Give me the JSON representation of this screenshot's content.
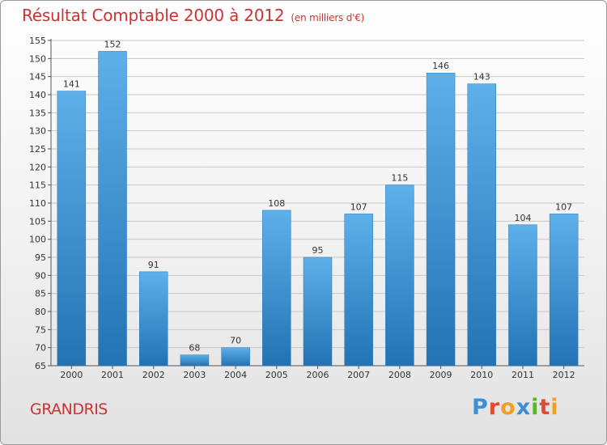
{
  "title": "Résultat Comptable 2000 à 2012",
  "subtitle": "(en milliers d'€)",
  "place": "GRANDRIS",
  "logo": {
    "text": "Proxiti",
    "letters": [
      {
        "ch": "P",
        "color": "#3a8fd8"
      },
      {
        "ch": "r",
        "color": "#e2492e"
      },
      {
        "ch": "o",
        "color": "#f0a020"
      },
      {
        "ch": "x",
        "color": "#3a8fd8"
      },
      {
        "ch": "i",
        "color": "#59b52e"
      },
      {
        "ch": "t",
        "color": "#e2492e"
      },
      {
        "ch": "i",
        "color": "#f0a020"
      }
    ]
  },
  "colors": {
    "title": "#cc3333",
    "bar_top": "#5eb0ea",
    "bar_bottom": "#2273b4",
    "grid": "#c8c8c8"
  },
  "chart_data": {
    "type": "bar",
    "title": "Résultat Comptable 2000 à 2012",
    "subtitle": "(en milliers d'€)",
    "xlabel": "",
    "ylabel": "",
    "categories": [
      "2000",
      "2001",
      "2002",
      "2003",
      "2004",
      "2005",
      "2006",
      "2007",
      "2008",
      "2009",
      "2010",
      "2011",
      "2012"
    ],
    "values": [
      141,
      152,
      91,
      68,
      70,
      108,
      95,
      107,
      115,
      146,
      143,
      104,
      107
    ],
    "ylim": [
      65,
      155
    ],
    "ytick_step": 5,
    "grid": true,
    "legend": "none"
  }
}
